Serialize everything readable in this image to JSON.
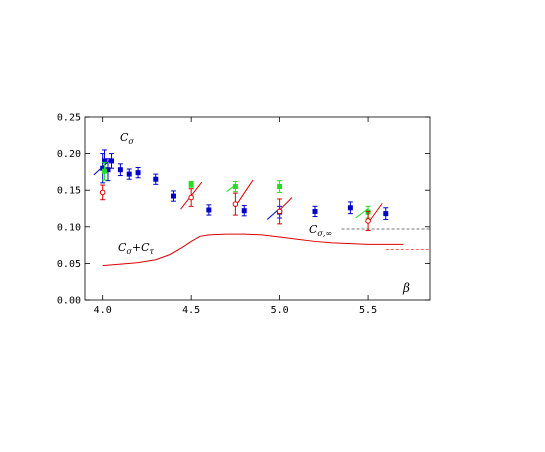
{
  "chart_data": {
    "type": "scatter",
    "title": "",
    "xlabel": "β",
    "ylabel": "",
    "xlim": [
      3.9,
      5.85
    ],
    "ylim": [
      0.0,
      0.25
    ],
    "grid": false,
    "x_ticks": [
      "4.0",
      "4.5",
      "5.0",
      "5.5"
    ],
    "y_ticks": [
      "0.00",
      "0.05",
      "0.10",
      "0.15",
      "0.20",
      "0.25"
    ],
    "annotations": {
      "c_sigma": "C",
      "c_sigma_sub": "σ",
      "c_sum": "C",
      "c_sum_sub1": "σ",
      "c_sum_plus": "+C",
      "c_sum_sub2": "τ",
      "c_inf": "C",
      "c_inf_sub": "σ,∞"
    },
    "colors": {
      "blue": "#0000cc",
      "green": "#22dd22",
      "red": "#dd0000",
      "gray": "#777777",
      "pink": "#ff6666"
    },
    "series": [
      {
        "color_key": "blue",
        "marker": "square",
        "points": [
          {
            "x": 4.0,
            "y": 0.18,
            "err": 0.02
          },
          {
            "x": 4.01,
            "y": 0.19,
            "err": 0.015
          },
          {
            "x": 4.03,
            "y": 0.178,
            "err": 0.015
          },
          {
            "x": 4.05,
            "y": 0.19,
            "err": 0.01
          },
          {
            "x": 4.1,
            "y": 0.178,
            "err": 0.008
          },
          {
            "x": 4.15,
            "y": 0.172,
            "err": 0.007
          },
          {
            "x": 4.2,
            "y": 0.174,
            "err": 0.007
          },
          {
            "x": 4.3,
            "y": 0.165,
            "err": 0.007
          },
          {
            "x": 4.4,
            "y": 0.142,
            "err": 0.007
          },
          {
            "x": 4.6,
            "y": 0.123,
            "err": 0.007
          },
          {
            "x": 4.8,
            "y": 0.122,
            "err": 0.007
          },
          {
            "x": 5.0,
            "y": 0.12,
            "err": 0.008
          },
          {
            "x": 5.2,
            "y": 0.121,
            "err": 0.007
          },
          {
            "x": 5.4,
            "y": 0.126,
            "err": 0.008
          },
          {
            "x": 5.6,
            "y": 0.118,
            "err": 0.008
          }
        ]
      },
      {
        "color_key": "green",
        "marker": "square",
        "points": [
          {
            "x": 4.01,
            "y": 0.176,
            "err": 0.012
          },
          {
            "x": 4.5,
            "y": 0.158,
            "err": 0.004
          },
          {
            "x": 4.75,
            "y": 0.155,
            "err": 0.007
          },
          {
            "x": 5.0,
            "y": 0.155,
            "err": 0.008
          },
          {
            "x": 5.5,
            "y": 0.12,
            "err": 0.008
          }
        ]
      },
      {
        "color_key": "red",
        "marker": "open-circle",
        "points": [
          {
            "x": 4.0,
            "y": 0.147,
            "err": 0.01
          },
          {
            "x": 4.5,
            "y": 0.14,
            "err": 0.012
          },
          {
            "x": 4.75,
            "y": 0.131,
            "err": 0.015
          },
          {
            "x": 5.0,
            "y": 0.121,
            "err": 0.017
          },
          {
            "x": 5.5,
            "y": 0.108,
            "err": 0.013
          }
        ]
      }
    ],
    "slope_lines": [
      {
        "color_key": "blue",
        "points": [
          [
            3.95,
            0.171
          ],
          [
            4.05,
            0.193
          ]
        ]
      },
      {
        "color_key": "red",
        "points": [
          [
            4.44,
            0.124
          ],
          [
            4.56,
            0.161
          ]
        ]
      },
      {
        "color_key": "green",
        "points": [
          [
            4.7,
            0.148
          ],
          [
            4.75,
            0.157
          ]
        ]
      },
      {
        "color_key": "red",
        "points": [
          [
            4.75,
            0.128
          ],
          [
            4.85,
            0.164
          ]
        ]
      },
      {
        "color_key": "blue",
        "points": [
          [
            4.93,
            0.11
          ],
          [
            5.0,
            0.125
          ]
        ]
      },
      {
        "color_key": "red",
        "points": [
          [
            5.0,
            0.123
          ],
          [
            5.07,
            0.14
          ]
        ]
      },
      {
        "color_key": "green",
        "points": [
          [
            5.43,
            0.112
          ],
          [
            5.5,
            0.125
          ]
        ]
      },
      {
        "color_key": "red",
        "points": [
          [
            5.5,
            0.105
          ],
          [
            5.58,
            0.132
          ]
        ]
      }
    ],
    "curves": [
      {
        "color_key": "red",
        "dashed": false,
        "points": [
          [
            4.0,
            0.047
          ],
          [
            4.1,
            0.049
          ],
          [
            4.2,
            0.051
          ],
          [
            4.3,
            0.055
          ],
          [
            4.38,
            0.062
          ],
          [
            4.45,
            0.072
          ],
          [
            4.5,
            0.08
          ],
          [
            4.55,
            0.087
          ],
          [
            4.6,
            0.089
          ],
          [
            4.7,
            0.09
          ],
          [
            4.8,
            0.09
          ],
          [
            4.9,
            0.089
          ],
          [
            5.0,
            0.086
          ],
          [
            5.1,
            0.083
          ],
          [
            5.2,
            0.08
          ],
          [
            5.3,
            0.078
          ],
          [
            5.4,
            0.077
          ],
          [
            5.5,
            0.076
          ],
          [
            5.6,
            0.076
          ],
          [
            5.7,
            0.076
          ]
        ]
      },
      {
        "color_key": "gray",
        "dashed": true,
        "points": [
          [
            5.35,
            0.097
          ],
          [
            5.85,
            0.097
          ]
        ]
      },
      {
        "color_key": "pink",
        "dashed": true,
        "points": [
          [
            5.6,
            0.069
          ],
          [
            5.85,
            0.069
          ]
        ]
      }
    ]
  }
}
